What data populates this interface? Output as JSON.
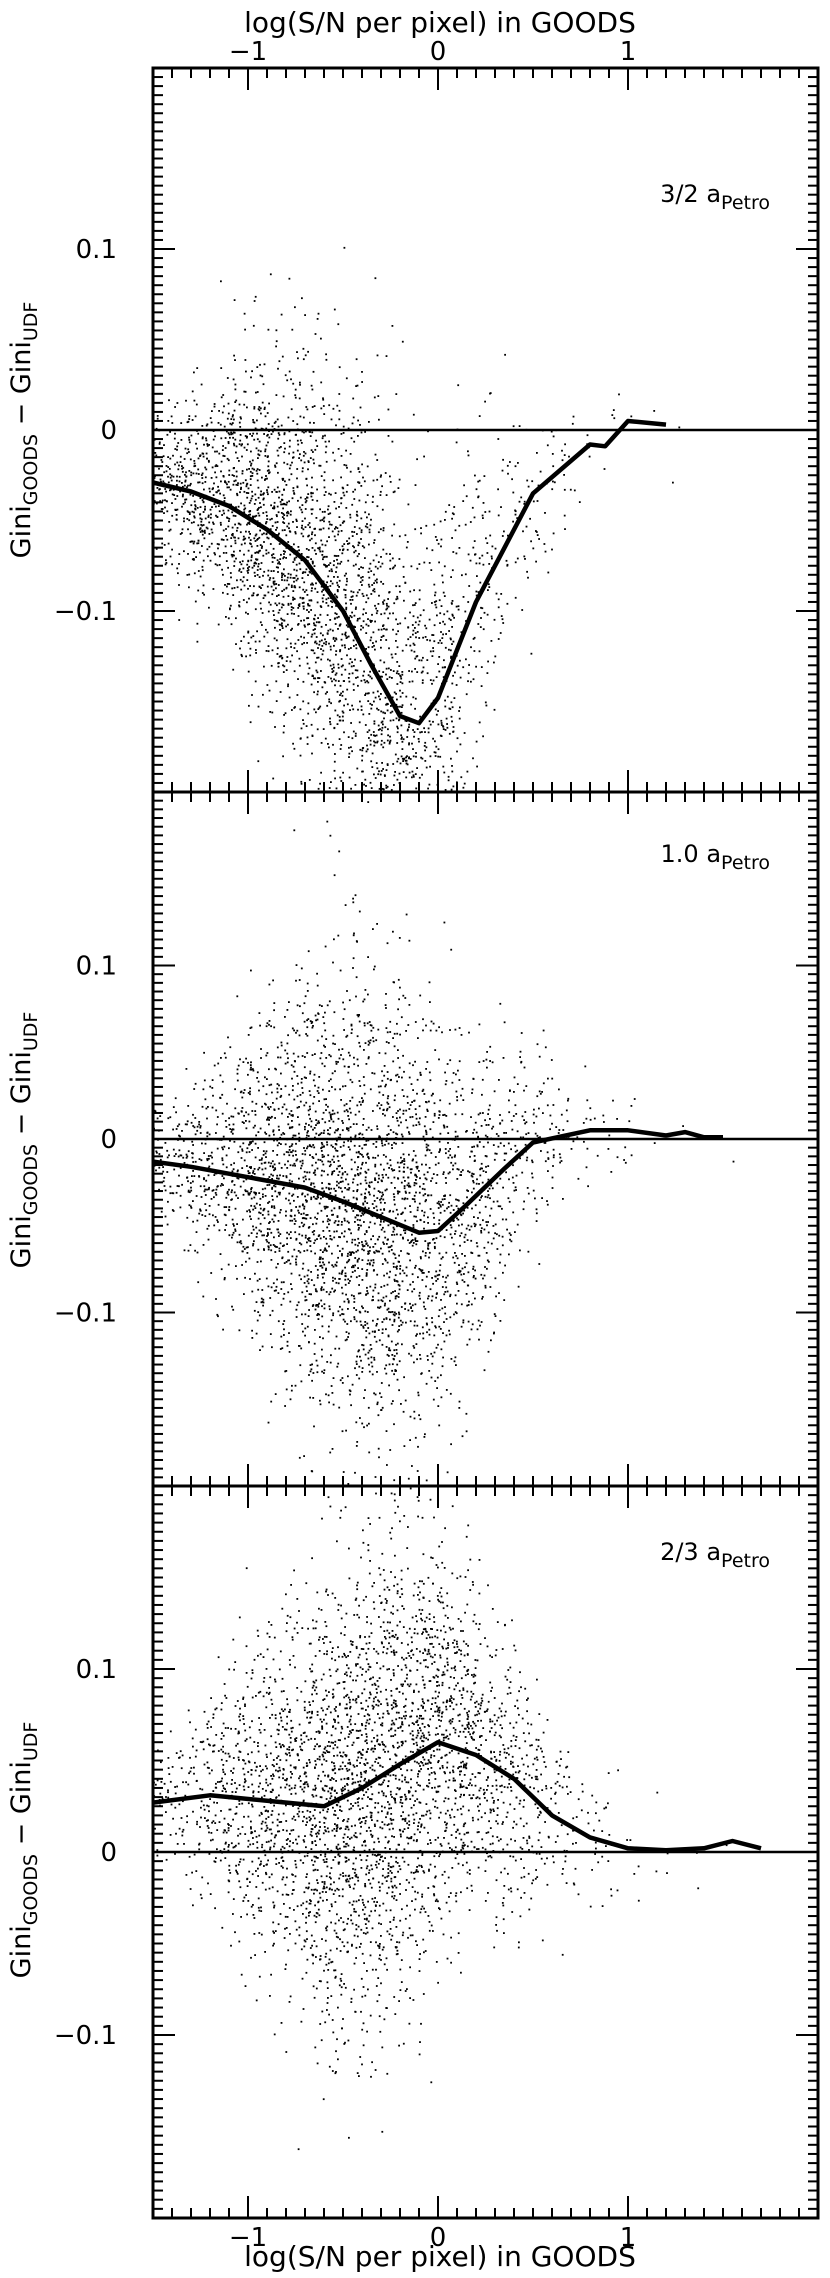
{
  "chart_data": [
    {
      "type": "scatter",
      "panel": "top",
      "annotation": "3/2 a",
      "annotation_subscript": "Petro",
      "ylabel": "Gini",
      "ylabel_sub1": "GOODS",
      "ylabel_mid": " − Gini",
      "ylabel_sub2": "UDF",
      "xlabel_top": "log(S/N per pixel) in GOODS",
      "xlim": [
        -1.5,
        2.0
      ],
      "ylim": [
        -0.2,
        0.2
      ],
      "x_ticks": [
        "−1",
        "0",
        "1"
      ],
      "y_ticks": [
        {
          "value": 0.1,
          "label": "0.1"
        },
        {
          "value": 0,
          "label": "0"
        },
        {
          "value": -0.1,
          "label": "−0.1"
        }
      ],
      "reference_line_y": 0,
      "scatter_model": {
        "count": 3200,
        "center_x": -0.65,
        "spread_x": 0.55,
        "x_min": -1.5,
        "x_max": 1.4
      },
      "median_curve": {
        "x": [
          -1.5,
          -1.3,
          -1.1,
          -0.9,
          -0.7,
          -0.5,
          -0.35,
          -0.2,
          -0.1,
          0.0,
          0.2,
          0.5,
          0.8,
          0.88,
          1.0,
          1.2
        ],
        "y": [
          -0.029,
          -0.034,
          -0.042,
          -0.055,
          -0.072,
          -0.1,
          -0.13,
          -0.158,
          -0.162,
          -0.148,
          -0.095,
          -0.035,
          -0.008,
          -0.009,
          0.005,
          0.003
        ]
      }
    },
    {
      "type": "scatter",
      "panel": "middle",
      "annotation": "1.0 a",
      "annotation_subscript": "Petro",
      "ylabel": "Gini",
      "ylabel_sub1": "GOODS",
      "ylabel_mid": " − Gini",
      "ylabel_sub2": "UDF",
      "xlim": [
        -1.5,
        2.0
      ],
      "ylim": [
        -0.2,
        0.2
      ],
      "y_ticks": [
        {
          "value": 0.1,
          "label": "0.1"
        },
        {
          "value": 0,
          "label": "0"
        },
        {
          "value": -0.1,
          "label": "−0.1"
        }
      ],
      "reference_line_y": 0,
      "scatter_model": {
        "count": 3400,
        "center_x": -0.45,
        "spread_x": 0.5,
        "x_min": -1.5,
        "x_max": 1.6
      },
      "median_curve": {
        "x": [
          -1.5,
          -1.3,
          -1.0,
          -0.7,
          -0.5,
          -0.3,
          -0.1,
          0.0,
          0.15,
          0.35,
          0.5,
          0.8,
          1.0,
          1.2,
          1.3,
          1.4,
          1.5
        ],
        "y": [
          -0.013,
          -0.016,
          -0.022,
          -0.028,
          -0.036,
          -0.045,
          -0.054,
          -0.053,
          -0.038,
          -0.017,
          -0.002,
          0.005,
          0.005,
          0.002,
          0.004,
          0.001,
          0.001
        ]
      }
    },
    {
      "type": "scatter",
      "panel": "bottom",
      "annotation": "2/3 a",
      "annotation_subscript": "Petro",
      "ylabel": "Gini",
      "ylabel_sub1": "GOODS",
      "ylabel_mid": " − Gini",
      "ylabel_sub2": "UDF",
      "xlabel": "log(S/N per pixel) in GOODS",
      "xlim": [
        -1.5,
        2.0
      ],
      "ylim": [
        -0.2,
        0.2
      ],
      "x_ticks": [
        "−1",
        "0",
        "1"
      ],
      "y_ticks": [
        {
          "value": 0.1,
          "label": "0.1"
        },
        {
          "value": 0,
          "label": "0"
        },
        {
          "value": -0.1,
          "label": "−0.1"
        }
      ],
      "reference_line_y": 0,
      "scatter_model": {
        "count": 3600,
        "center_x": -0.35,
        "spread_x": 0.5,
        "x_min": -1.5,
        "x_max": 1.9
      },
      "median_curve": {
        "x": [
          -1.5,
          -1.2,
          -0.9,
          -0.6,
          -0.4,
          -0.2,
          0.0,
          0.2,
          0.4,
          0.6,
          0.8,
          1.0,
          1.2,
          1.4,
          1.55,
          1.7
        ],
        "y": [
          0.027,
          0.031,
          0.028,
          0.025,
          0.035,
          0.048,
          0.06,
          0.053,
          0.04,
          0.02,
          0.008,
          0.002,
          0.001,
          0.002,
          0.006,
          0.002
        ]
      }
    }
  ]
}
